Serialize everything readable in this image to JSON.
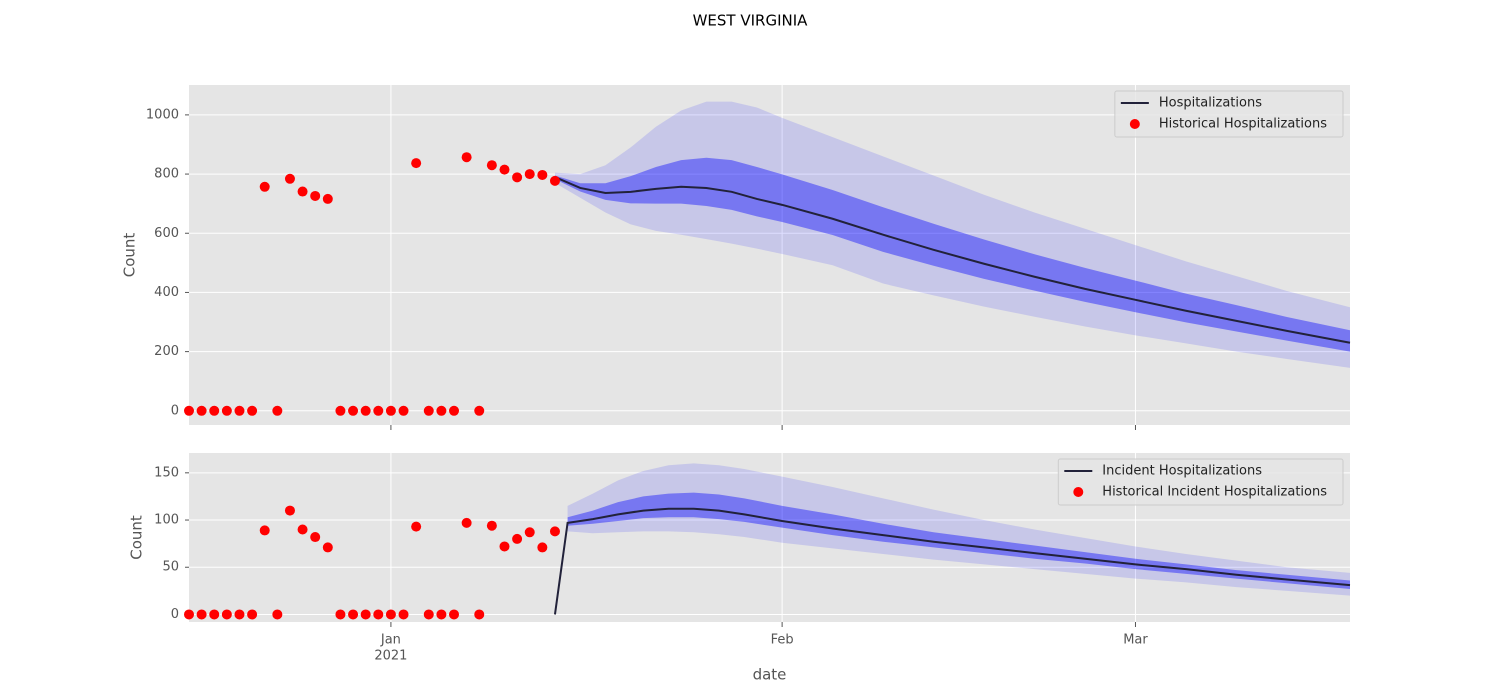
{
  "title": "WEST VIRGINIA",
  "chart_data": [
    {
      "type": "line",
      "ylabel": "Count",
      "grid": true,
      "legend": "upper right",
      "xlim": [
        "2020-12-16",
        "2021-03-18"
      ],
      "xticks": [
        "2021-01-01",
        "2021-02-01",
        "2021-03-01"
      ],
      "ylim": [
        -48,
        1101
      ],
      "yticks": [
        0,
        200,
        400,
        600,
        800,
        1000
      ],
      "x": [
        "2021-01-14",
        "2021-01-16",
        "2021-01-18",
        "2021-01-20",
        "2021-01-22",
        "2021-01-24",
        "2021-01-26",
        "2021-01-28",
        "2021-01-30",
        "2021-02-01",
        "2021-02-05",
        "2021-02-09",
        "2021-02-13",
        "2021-02-17",
        "2021-02-21",
        "2021-02-25",
        "2021-03-01",
        "2021-03-05",
        "2021-03-09",
        "2021-03-13",
        "2021-03-18"
      ],
      "bands": [
        {
          "color": "#0000ff",
          "opacity": 0.13,
          "upper": [
            805,
            800,
            830,
            890,
            960,
            1015,
            1045,
            1045,
            1025,
            990,
            925,
            860,
            795,
            730,
            670,
            615,
            560,
            505,
            455,
            405,
            350
          ],
          "lower": [
            770,
            720,
            670,
            630,
            608,
            595,
            580,
            565,
            548,
            530,
            492,
            430,
            390,
            352,
            318,
            285,
            255,
            228,
            200,
            175,
            145
          ]
        },
        {
          "color": "#0000ff",
          "opacity": 0.4,
          "upper": [
            795,
            769,
            769,
            793,
            824,
            847,
            855,
            847,
            824,
            799,
            746,
            688,
            632,
            579,
            529,
            483,
            440,
            396,
            357,
            317,
            272
          ],
          "lower": [
            783,
            741,
            713,
            701,
            700,
            700,
            692,
            679,
            657,
            638,
            594,
            537,
            490,
            446,
            406,
            368,
            333,
            299,
            268,
            237,
            200
          ]
        }
      ],
      "series": [
        {
          "name": "Hospitalizations",
          "color": "#22223a",
          "values": [
            790,
            753,
            736,
            740,
            750,
            757,
            753,
            740,
            716,
            696,
            649,
            595,
            544,
            497,
            453,
            412,
            375,
            338,
            304,
            270,
            230
          ]
        }
      ],
      "scatter": {
        "name": "Historical Hospitalizations",
        "color": "#ff0000",
        "x": [
          "2020-12-16",
          "2020-12-17",
          "2020-12-18",
          "2020-12-19",
          "2020-12-20",
          "2020-12-21",
          "2020-12-22",
          "2020-12-23",
          "2020-12-24",
          "2020-12-25",
          "2020-12-26",
          "2020-12-27",
          "2020-12-28",
          "2020-12-29",
          "2020-12-30",
          "2020-12-31",
          "2021-01-01",
          "2021-01-02",
          "2021-01-03",
          "2021-01-04",
          "2021-01-05",
          "2021-01-06",
          "2021-01-07",
          "2021-01-08",
          "2021-01-09",
          "2021-01-10",
          "2021-01-11",
          "2021-01-12",
          "2021-01-13",
          "2021-01-14"
        ],
        "values": [
          0,
          0,
          0,
          0,
          0,
          0,
          757,
          0,
          784,
          741,
          726,
          716,
          0,
          0,
          0,
          0,
          0,
          0,
          837,
          0,
          0,
          0,
          857,
          0,
          830,
          815,
          789,
          800,
          797,
          777
        ]
      }
    },
    {
      "type": "line",
      "ylabel": "Count",
      "xlabel": "date",
      "grid": true,
      "legend": "upper right",
      "xlim": [
        "2020-12-16",
        "2021-03-18"
      ],
      "xticks": [
        {
          "value": "2021-01-01",
          "label": [
            "Jan",
            "2021"
          ]
        },
        {
          "value": "2021-02-01",
          "label": [
            "Feb"
          ]
        },
        {
          "value": "2021-03-01",
          "label": [
            "Mar"
          ]
        }
      ],
      "ylim": [
        -8,
        171
      ],
      "yticks": [
        0,
        50,
        100,
        150
      ],
      "x": [
        "2021-01-14",
        "2021-01-15",
        "2021-01-17",
        "2021-01-19",
        "2021-01-21",
        "2021-01-23",
        "2021-01-25",
        "2021-01-27",
        "2021-01-29",
        "2021-02-01",
        "2021-02-05",
        "2021-02-09",
        "2021-02-13",
        "2021-02-17",
        "2021-02-21",
        "2021-02-25",
        "2021-03-01",
        "2021-03-05",
        "2021-03-09",
        "2021-03-13",
        "2021-03-18"
      ],
      "bands": [
        {
          "color": "#0000ff",
          "opacity": 0.13,
          "upper": [
            null,
            115,
            128,
            142,
            152,
            158,
            160,
            158,
            154,
            146,
            135,
            123,
            111,
            100,
            90,
            81,
            72,
            64,
            57,
            50,
            44
          ],
          "lower": [
            null,
            88,
            86,
            87,
            88,
            88,
            87,
            85,
            82,
            76,
            70,
            64,
            58,
            53,
            48,
            43,
            38,
            34,
            29,
            25,
            20
          ]
        },
        {
          "color": "#0000ff",
          "opacity": 0.4,
          "upper": [
            null,
            103,
            110,
            119,
            125,
            128,
            129,
            127,
            123,
            115,
            106,
            96,
            87,
            80,
            73,
            66,
            59,
            53,
            47,
            42,
            36
          ],
          "lower": [
            null,
            94,
            96,
            99,
            102,
            103,
            103,
            101,
            98,
            92,
            84,
            77,
            71,
            65,
            59,
            54,
            48,
            43,
            38,
            33,
            27
          ]
        }
      ],
      "series": [
        {
          "name": "Incident Hospitalizations",
          "color": "#22223a",
          "values": [
            0,
            97,
            101,
            106,
            110,
            112,
            112,
            110,
            106,
            99,
            91,
            84,
            77,
            71,
            65,
            59,
            53,
            48,
            42,
            37,
            31
          ]
        }
      ],
      "scatter": {
        "name": "Historical Incident Hospitalizations",
        "color": "#ff0000",
        "x": [
          "2020-12-16",
          "2020-12-17",
          "2020-12-18",
          "2020-12-19",
          "2020-12-20",
          "2020-12-21",
          "2020-12-22",
          "2020-12-23",
          "2020-12-24",
          "2020-12-25",
          "2020-12-26",
          "2020-12-27",
          "2020-12-28",
          "2020-12-29",
          "2020-12-30",
          "2020-12-31",
          "2021-01-01",
          "2021-01-02",
          "2021-01-03",
          "2021-01-04",
          "2021-01-05",
          "2021-01-06",
          "2021-01-07",
          "2021-01-08",
          "2021-01-09",
          "2021-01-10",
          "2021-01-11",
          "2021-01-12",
          "2021-01-13",
          "2021-01-14"
        ],
        "values": [
          0,
          0,
          0,
          0,
          0,
          0,
          89,
          0,
          110,
          90,
          82,
          71,
          0,
          0,
          0,
          0,
          0,
          0,
          93,
          0,
          0,
          0,
          97,
          0,
          94,
          72,
          80,
          87,
          71,
          88
        ]
      }
    }
  ]
}
